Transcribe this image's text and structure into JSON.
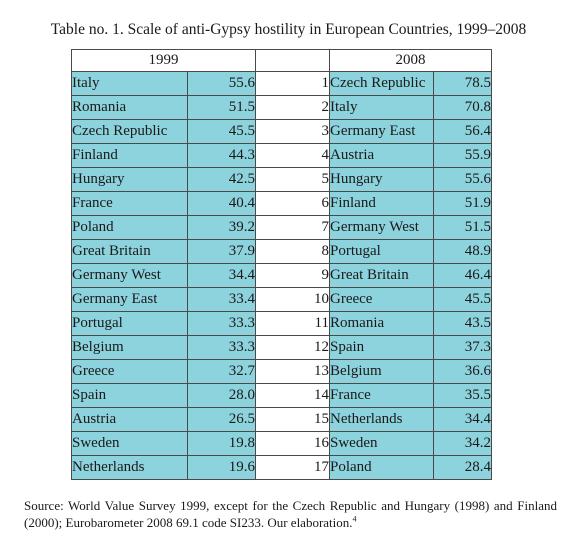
{
  "title": "Table no. 1. Scale of anti-Gypsy hostility in European Countries, 1999–2008",
  "headers": {
    "left": "1999",
    "right": "2008"
  },
  "rows": [
    {
      "c1999": "Italy",
      "v1999": "55.6",
      "rank": "1",
      "c2008": "Czech Republic",
      "v2008": "78.5"
    },
    {
      "c1999": "Romania",
      "v1999": "51.5",
      "rank": "2",
      "c2008": "Italy",
      "v2008": "70.8"
    },
    {
      "c1999": "Czech Republic",
      "v1999": "45.5",
      "rank": "3",
      "c2008": "Germany East",
      "v2008": "56.4"
    },
    {
      "c1999": "Finland",
      "v1999": "44.3",
      "rank": "4",
      "c2008": "Austria",
      "v2008": "55.9"
    },
    {
      "c1999": "Hungary",
      "v1999": "42.5",
      "rank": "5",
      "c2008": "Hungary",
      "v2008": "55.6"
    },
    {
      "c1999": "France",
      "v1999": "40.4",
      "rank": "6",
      "c2008": "Finland",
      "v2008": "51.9"
    },
    {
      "c1999": "Poland",
      "v1999": "39.2",
      "rank": "7",
      "c2008": "Germany West",
      "v2008": "51.5"
    },
    {
      "c1999": "Great Britain",
      "v1999": "37.9",
      "rank": "8",
      "c2008": "Portugal",
      "v2008": "48.9"
    },
    {
      "c1999": "Germany West",
      "v1999": "34.4",
      "rank": "9",
      "c2008": "Great Britain",
      "v2008": "46.4"
    },
    {
      "c1999": "Germany East",
      "v1999": "33.4",
      "rank": "10",
      "c2008": "Greece",
      "v2008": "45.5"
    },
    {
      "c1999": "Portugal",
      "v1999": "33.3",
      "rank": "11",
      "c2008": "Romania",
      "v2008": "43.5"
    },
    {
      "c1999": "Belgium",
      "v1999": "33.3",
      "rank": "12",
      "c2008": "Spain",
      "v2008": "37.3"
    },
    {
      "c1999": "Greece",
      "v1999": "32.7",
      "rank": "13",
      "c2008": "Belgium",
      "v2008": "36.6"
    },
    {
      "c1999": "Spain",
      "v1999": "28.0",
      "rank": "14",
      "c2008": "France",
      "v2008": "35.5"
    },
    {
      "c1999": "Austria",
      "v1999": "26.5",
      "rank": "15",
      "c2008": "Netherlands",
      "v2008": "34.4"
    },
    {
      "c1999": "Sweden",
      "v1999": "19.8",
      "rank": "16",
      "c2008": "Sweden",
      "v2008": "34.2"
    },
    {
      "c1999": "Netherlands",
      "v1999": "19.6",
      "rank": "17",
      "c2008": "Poland",
      "v2008": "28.4"
    }
  ],
  "source": {
    "text": "Source: World Value Survey 1999, except for the Czech Republic and Hungary (1998) and Finland (2000); Eurobarometer 2008 69.1 code SI233. Our elaboration.",
    "footnote_mark": "4"
  },
  "colors": {
    "cell_fill": "#8dd3dd",
    "border": "#4a4a4a"
  }
}
